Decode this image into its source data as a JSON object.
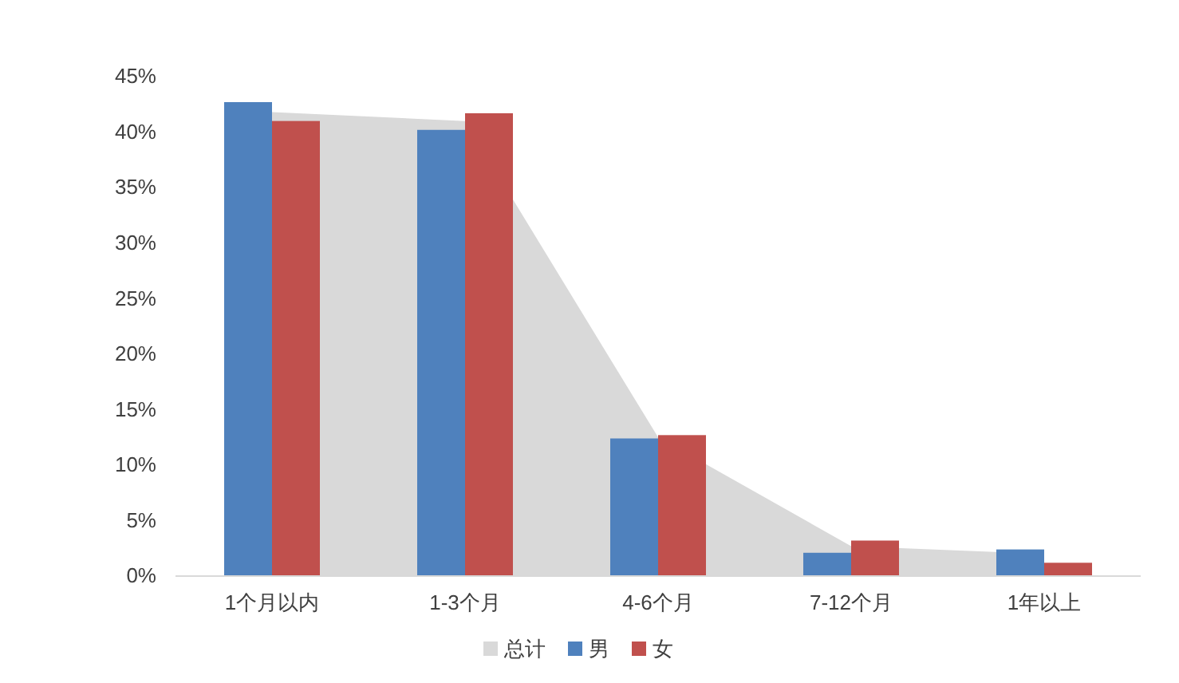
{
  "chart_data": {
    "type": "bar",
    "categories": [
      "1个月以内",
      "1-3个月",
      "4-6个月",
      "7-12个月",
      "1年以上"
    ],
    "series": [
      {
        "name": "总计",
        "type": "area",
        "color": "#d9d9d9",
        "values": [
          41.8,
          41.0,
          12.5,
          2.7,
          2.0
        ]
      },
      {
        "name": "男",
        "color": "#4f81bd",
        "values": [
          42.7,
          40.2,
          12.4,
          2.1,
          2.4
        ]
      },
      {
        "name": "女",
        "color": "#c0504d",
        "values": [
          41.0,
          41.7,
          12.7,
          3.2,
          1.2
        ]
      }
    ],
    "ylim": [
      0,
      45
    ],
    "yticks": [
      {
        "value": 0,
        "label": "0%"
      },
      {
        "value": 5,
        "label": "5%"
      },
      {
        "value": 10,
        "label": "10%"
      },
      {
        "value": 15,
        "label": "15%"
      },
      {
        "value": 20,
        "label": "20%"
      },
      {
        "value": 25,
        "label": "25%"
      },
      {
        "value": 30,
        "label": "30%"
      },
      {
        "value": 35,
        "label": "35%"
      },
      {
        "value": 40,
        "label": "40%"
      },
      {
        "value": 45,
        "label": "45%"
      }
    ],
    "grid": false,
    "legend": "bottom"
  }
}
